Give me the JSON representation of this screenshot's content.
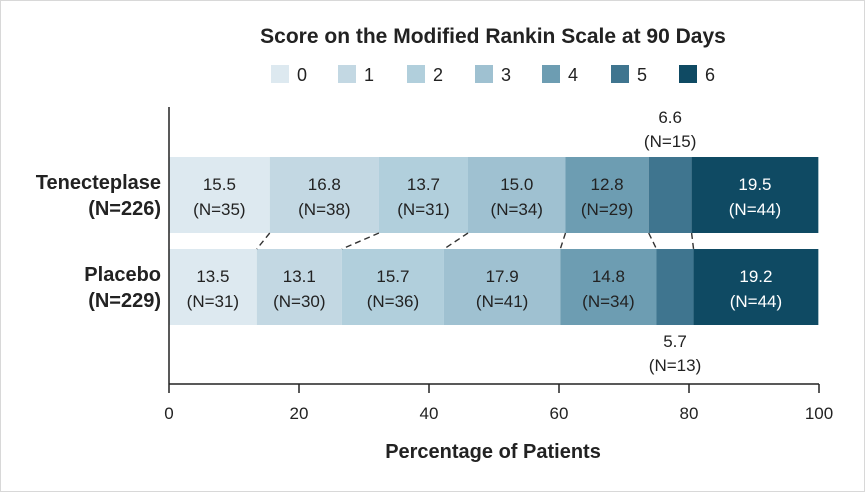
{
  "chart_data": {
    "type": "bar",
    "orientation": "horizontal-stacked",
    "title": "Score on the Modified Rankin Scale at 90 Days",
    "xlabel": "Percentage of Patients",
    "xlim": [
      0,
      100
    ],
    "xticks": [
      "0",
      "20",
      "40",
      "60",
      "80",
      "100"
    ],
    "categories": [
      {
        "line1": "Tenecteplase",
        "line2": "(N=226)"
      },
      {
        "line1": "Placebo",
        "line2": "(N=229)"
      }
    ],
    "series": [
      {
        "name": "0",
        "color": "#dde9f0",
        "values": [
          15.5,
          13.5
        ],
        "counts": [
          "(N=35)",
          "(N=31)"
        ],
        "labels": [
          "15.5",
          "13.5"
        ]
      },
      {
        "name": "1",
        "color": "#c3d8e3",
        "values": [
          16.8,
          13.1
        ],
        "counts": [
          "(N=38)",
          "(N=30)"
        ],
        "labels": [
          "16.8",
          "13.1"
        ]
      },
      {
        "name": "2",
        "color": "#b1cfdc",
        "values": [
          13.7,
          15.7
        ],
        "counts": [
          "(N=31)",
          "(N=36)"
        ],
        "labels": [
          "13.7",
          "15.7"
        ]
      },
      {
        "name": "3",
        "color": "#9fc1d1",
        "values": [
          15.0,
          17.9
        ],
        "counts": [
          "(N=34)",
          "(N=41)"
        ],
        "labels": [
          "15.0",
          "17.9"
        ]
      },
      {
        "name": "4",
        "color": "#6d9db2",
        "values": [
          12.8,
          14.8
        ],
        "counts": [
          "(N=29)",
          "(N=34)"
        ],
        "labels": [
          "12.8",
          "14.8"
        ]
      },
      {
        "name": "5",
        "color": "#3f758f",
        "values": [
          6.6,
          5.7
        ],
        "counts": [
          "(N=15)",
          "(N=13)"
        ],
        "labels": [
          "6.6",
          "5.7"
        ]
      },
      {
        "name": "6",
        "color": "#0f4a63",
        "values": [
          19.5,
          19.2
        ],
        "counts": [
          "(N=44)",
          "(N=44)"
        ],
        "labels": [
          "19.5",
          "19.2"
        ]
      }
    ],
    "legend": "top-center",
    "grid": false
  }
}
